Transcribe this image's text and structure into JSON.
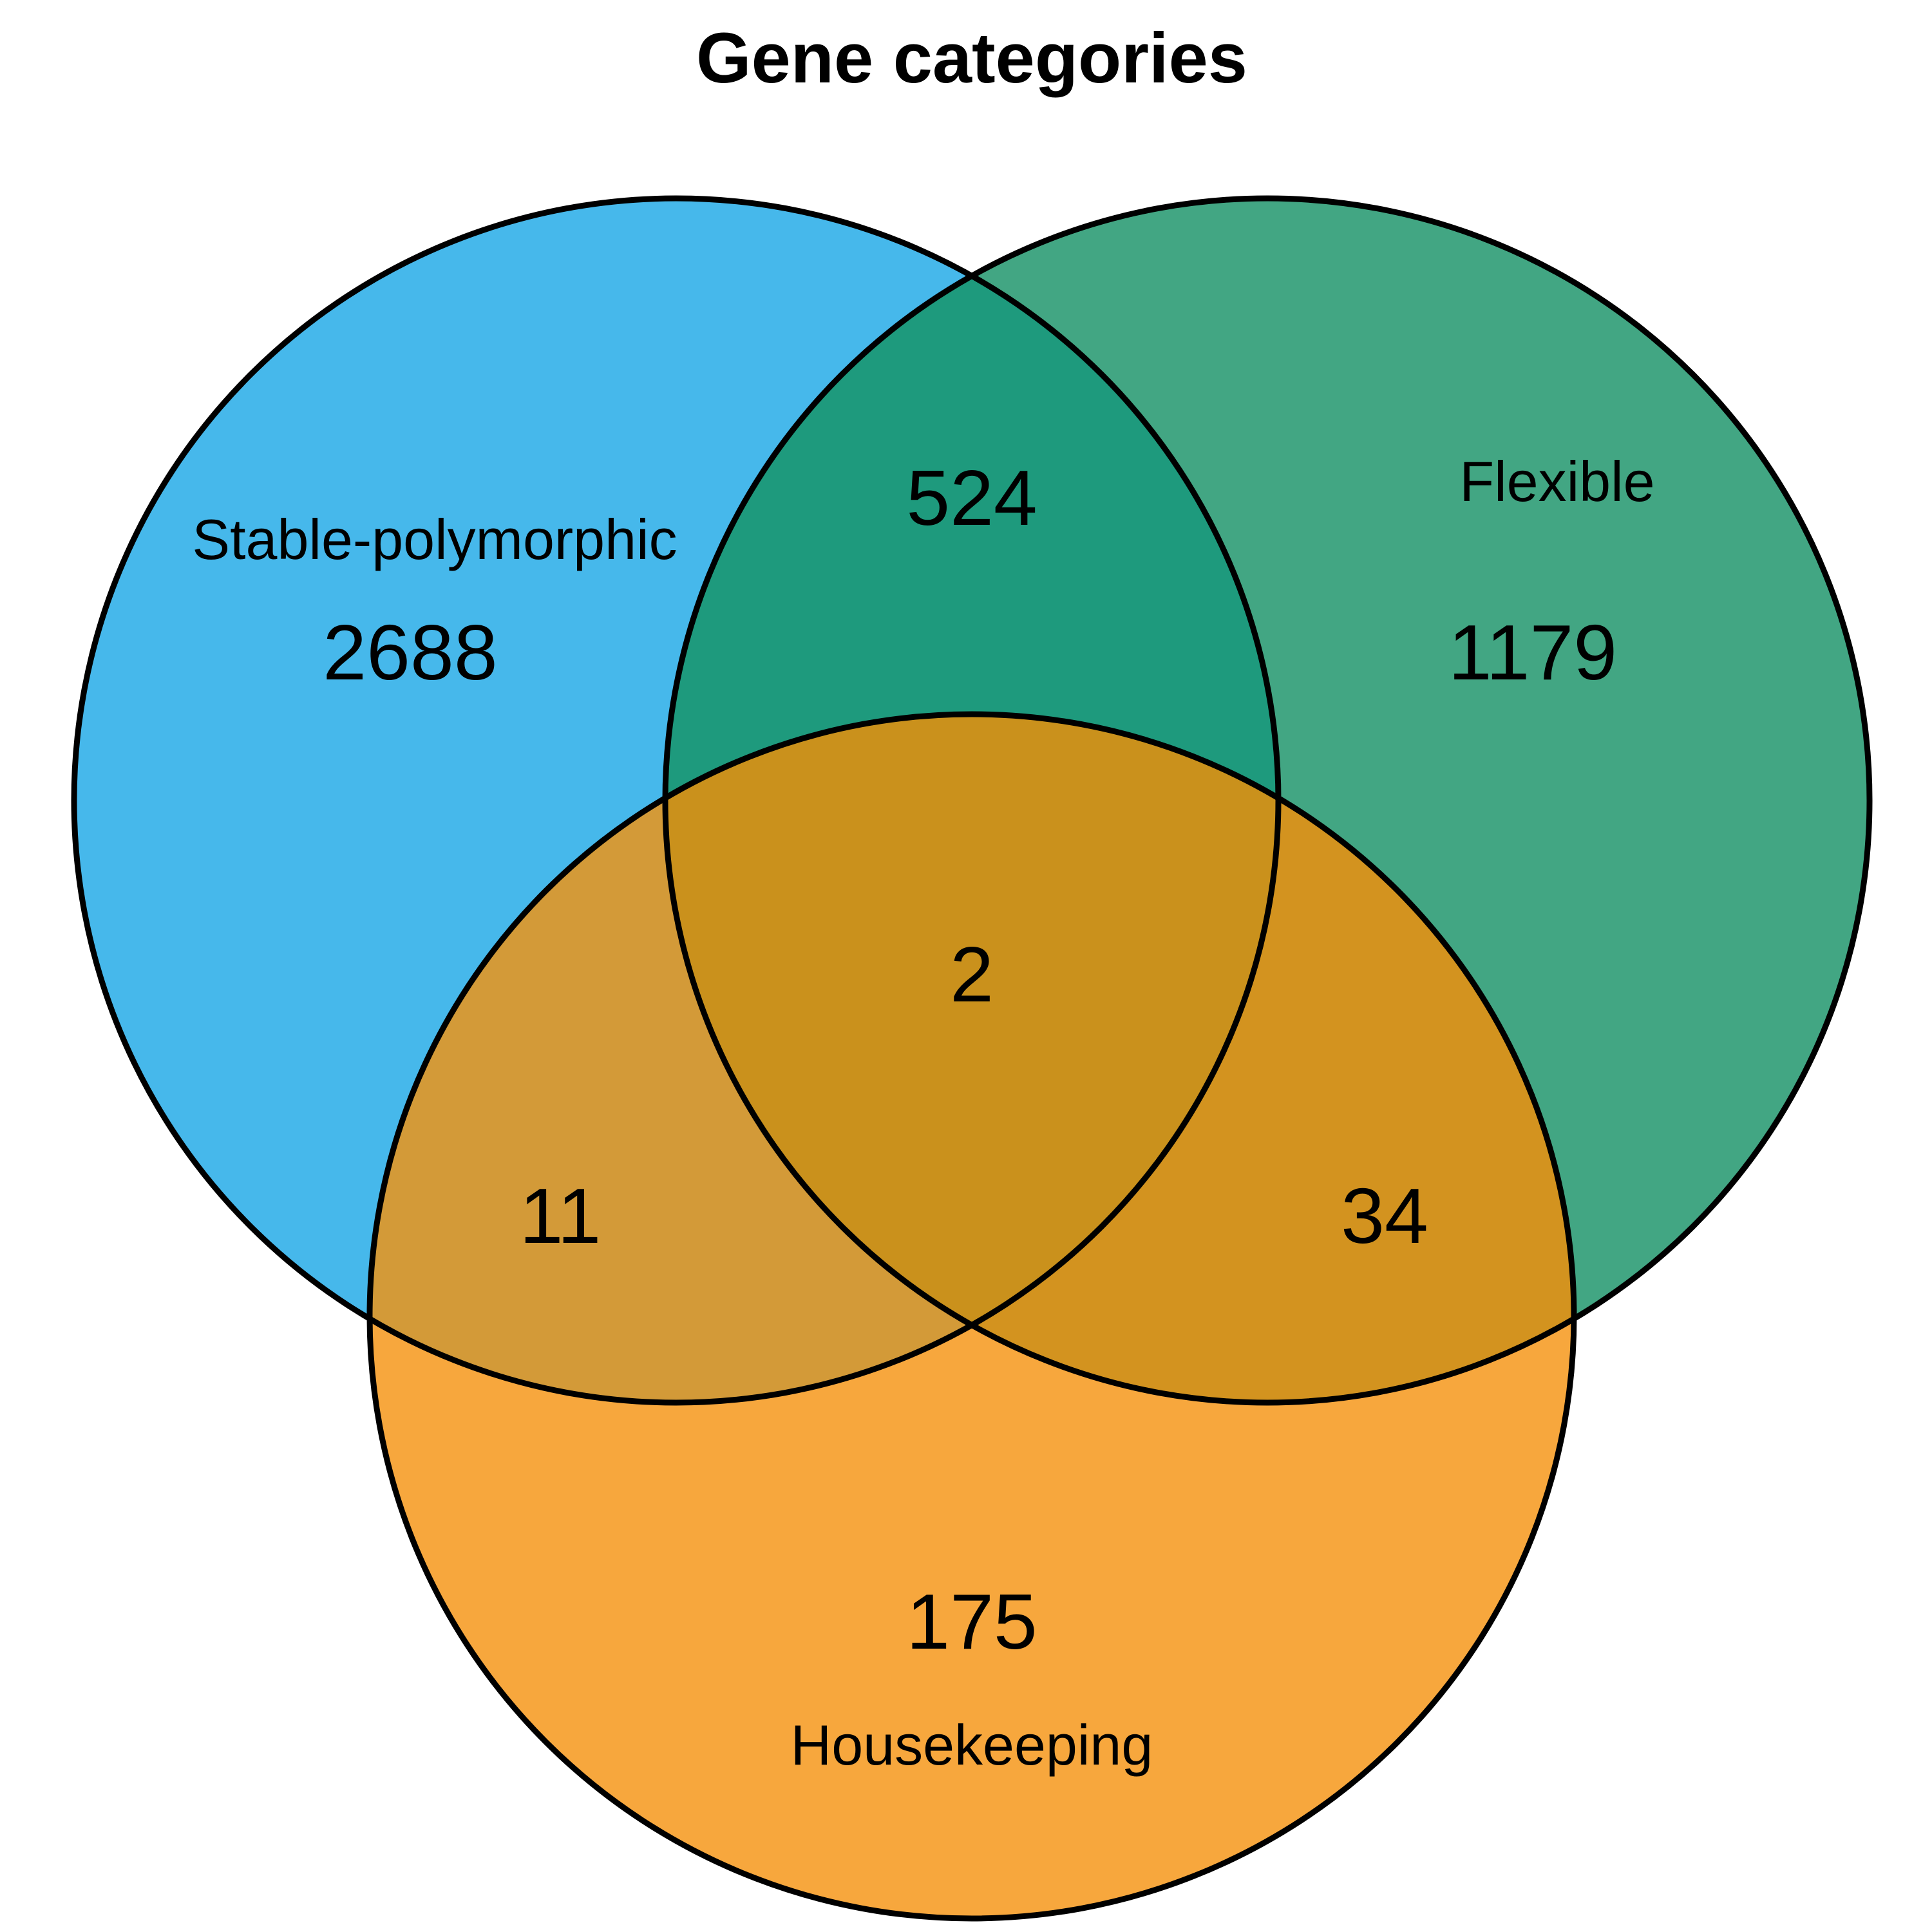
{
  "title": "Gene categories",
  "sets": [
    {
      "name": "Stable-polymorphic",
      "color": "#46B8EB"
    },
    {
      "name": "Flexible",
      "color": "#42A683"
    },
    {
      "name": "Housekeeping",
      "color": "#F7A73D"
    }
  ],
  "regions": {
    "stable_only": "2688",
    "flexible_only": "1179",
    "housekeeping_only": "175",
    "stable_flexible": "524",
    "stable_housekeeping": "11",
    "flexible_housekeeping": "34",
    "all_three": "2"
  },
  "region_colors": {
    "stable_flexible": "#1E9A7D",
    "stable_housekeeping": "#D39A38",
    "flexible_housekeeping": "#D3931F",
    "all_three": "#CA911C"
  }
}
